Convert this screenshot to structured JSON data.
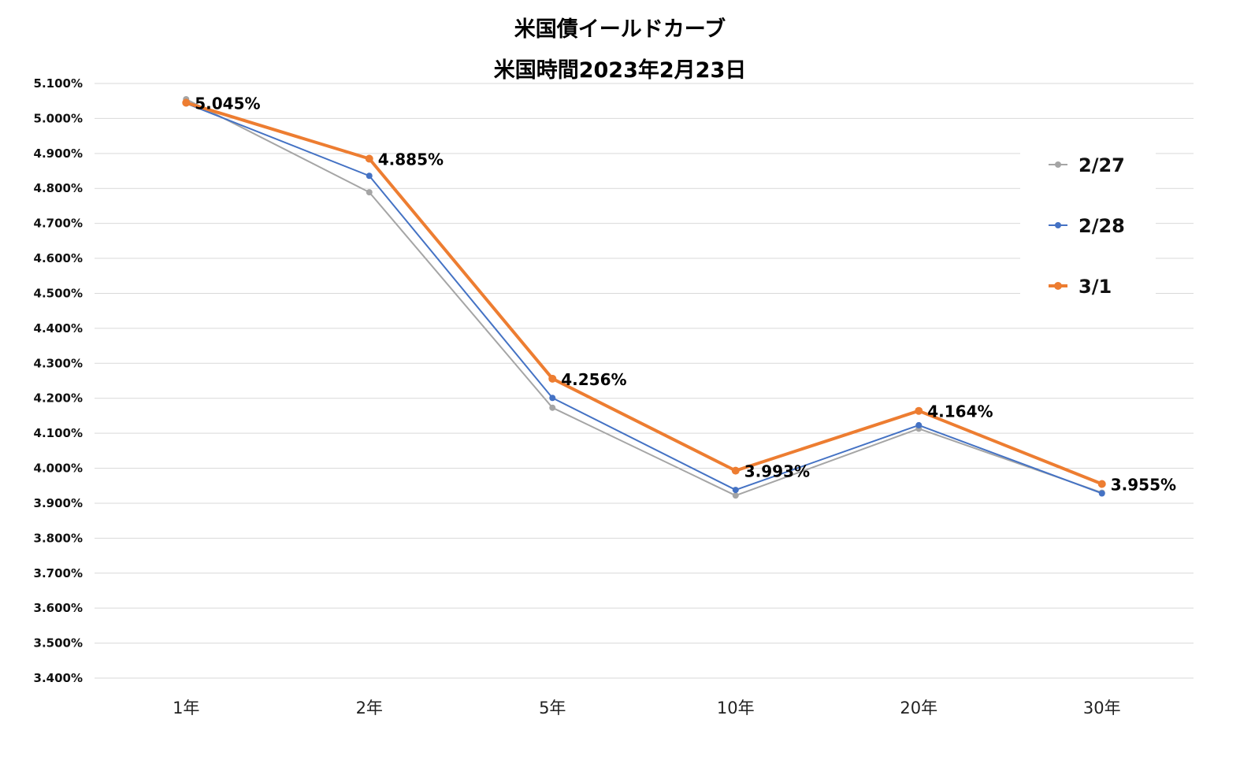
{
  "chart_data": {
    "type": "line",
    "title": "米国債イールドカーブ",
    "subtitle": "米国時間2023年2月23日",
    "categories": [
      "1年",
      "2年",
      "5年",
      "10年",
      "20年",
      "30年"
    ],
    "ylim": [
      3.4,
      5.1
    ],
    "yticks": [
      "5.100%",
      "5.000%",
      "4.900%",
      "4.800%",
      "4.700%",
      "4.600%",
      "4.500%",
      "4.400%",
      "4.300%",
      "4.200%",
      "4.100%",
      "4.000%",
      "3.900%",
      "3.800%",
      "3.700%",
      "3.600%",
      "3.500%",
      "3.400%"
    ],
    "ytick_values": [
      5.1,
      5.0,
      4.9,
      4.8,
      4.7,
      4.6,
      4.5,
      4.4,
      4.3,
      4.2,
      4.1,
      4.0,
      3.9,
      3.8,
      3.7,
      3.6,
      3.5,
      3.4
    ],
    "grid": true,
    "legend_position": "right",
    "series": [
      {
        "name": "2/27",
        "color": "#a5a5a5",
        "values": [
          5.055,
          4.789,
          4.173,
          3.922,
          4.113,
          3.93
        ]
      },
      {
        "name": "2/28",
        "color": "#4472c4",
        "values": [
          5.043,
          4.836,
          4.201,
          3.938,
          4.123,
          3.928
        ]
      },
      {
        "name": "3/1",
        "color": "#ed7d31",
        "values": [
          5.045,
          4.885,
          4.256,
          3.993,
          4.164,
          3.955
        ]
      }
    ],
    "data_labels": [
      "5.045%",
      "4.885%",
      "4.256%",
      "3.993%",
      "4.164%",
      "3.955%"
    ]
  }
}
